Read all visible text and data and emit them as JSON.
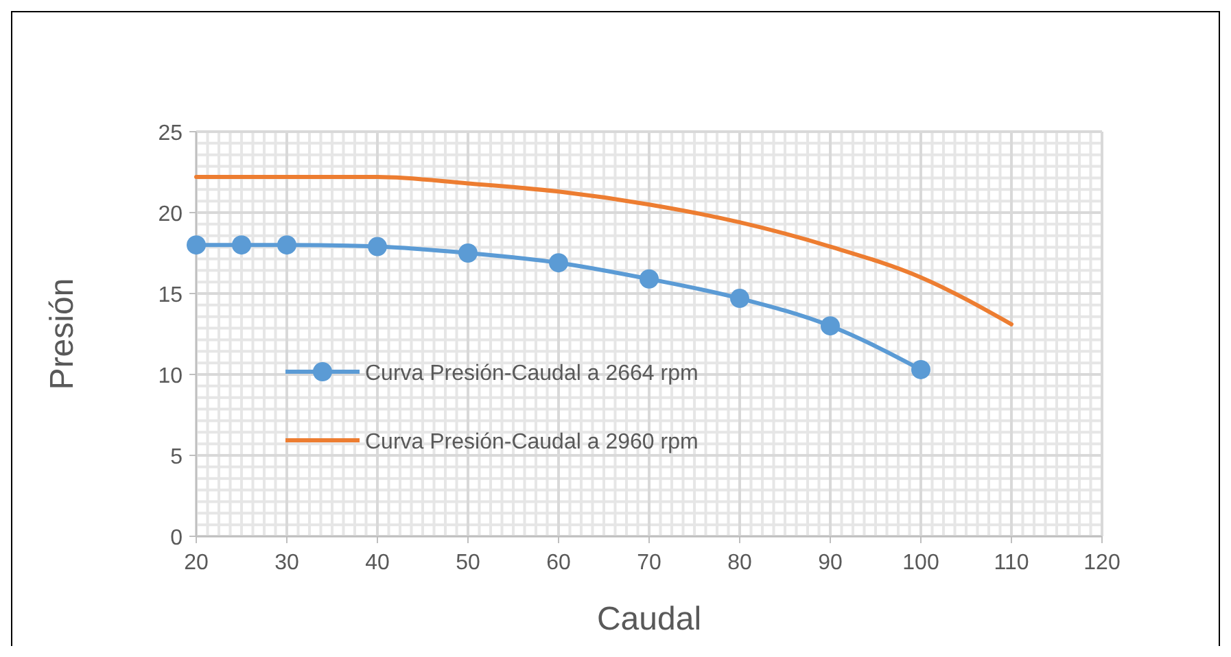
{
  "chart_data": {
    "type": "line",
    "xlabel": "Caudal",
    "ylabel": "Presión",
    "xlim": [
      20,
      120
    ],
    "xticks": [
      20,
      30,
      40,
      50,
      60,
      70,
      80,
      90,
      100,
      110,
      120
    ],
    "ylim": [
      0,
      25
    ],
    "yticks": [
      0,
      5,
      10,
      15,
      20,
      25
    ],
    "grid": true,
    "legend": "bottom left",
    "series": [
      {
        "name": "Curva Presión-Caudal a 2664 rpm",
        "color": "#5b9bd5",
        "marker": "circle",
        "x": [
          20,
          25,
          30,
          40,
          50,
          60,
          70,
          80,
          90,
          100
        ],
        "values": [
          18,
          18,
          18,
          17.9,
          17.5,
          16.9,
          15.9,
          14.7,
          13,
          10.3
        ]
      },
      {
        "name": "Curva Presión-Caudal a 2960 rpm",
        "color": "#ed7d31",
        "marker": "none",
        "x": [
          20,
          30,
          40,
          50,
          60,
          70,
          80,
          90,
          100,
          110
        ],
        "values": [
          22.2,
          22.2,
          22.2,
          21.8,
          21.3,
          20.5,
          19.4,
          17.9,
          16,
          13.1
        ]
      }
    ]
  }
}
